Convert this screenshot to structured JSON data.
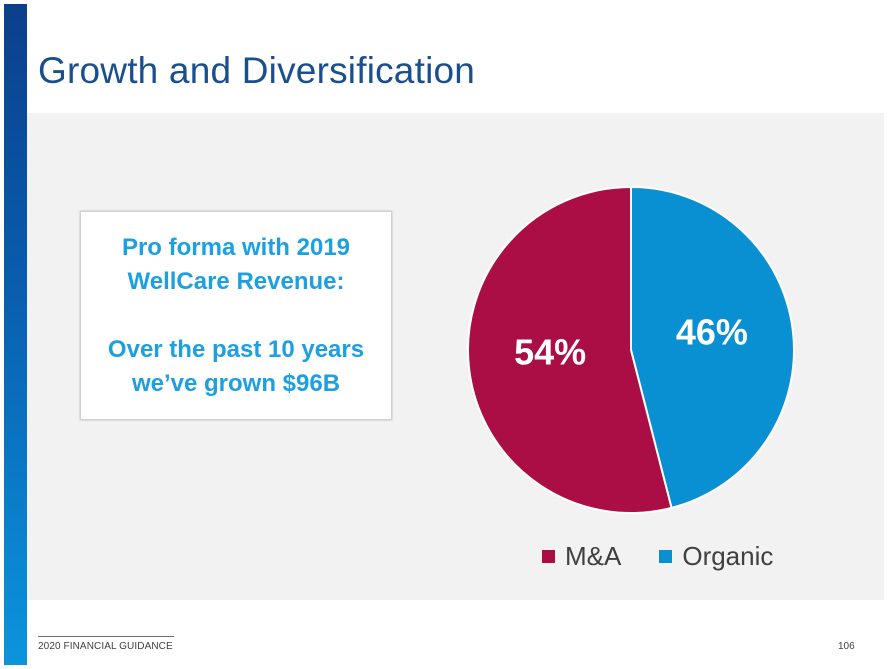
{
  "slide": {
    "title": "Growth and Diversification",
    "footer_label": "2020 FINANCIAL GUIDANCE",
    "page_number": "106"
  },
  "callout": {
    "line1": "Pro forma with 2019",
    "line2": "WellCare Revenue:",
    "line3": "Over the past 10 years",
    "line4": "we’ve grown $96B"
  },
  "colors": {
    "ma": "#ab0d45",
    "organic": "#0890d2",
    "accent": "#1ca0e1"
  },
  "chart_data": {
    "type": "pie",
    "title": "",
    "categories": [
      "M&A",
      "Organic"
    ],
    "values": [
      54,
      46
    ],
    "data_labels": [
      "54%",
      "46%"
    ],
    "legend": [
      "M&A",
      "Organic"
    ],
    "legend_position": "bottom"
  }
}
